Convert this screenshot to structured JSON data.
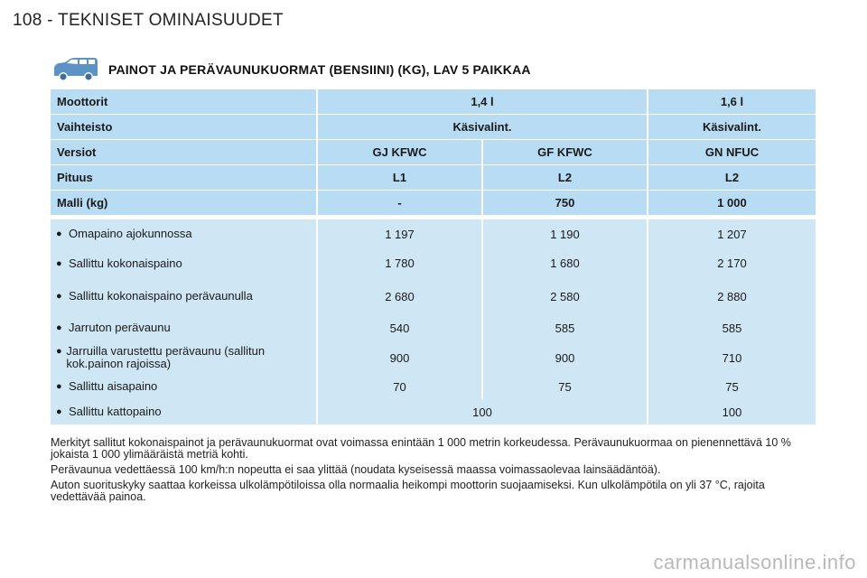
{
  "page": {
    "header": "108 - TEKNISET OMINAISUUDET"
  },
  "section": {
    "title": "PAINOT JA PERÄVAUNUKUORMAT (BENSIINI) (KG), LAV 5 PAIKKAA",
    "icon": "van-icon"
  },
  "table": {
    "header_rows": [
      {
        "label": "Moottorit",
        "cells": [
          "1,4 l",
          "1,6 l"
        ],
        "spans": [
          2,
          1
        ]
      },
      {
        "label": "Vaihteisto",
        "cells": [
          "Käsivalint.",
          "Käsivalint."
        ],
        "spans": [
          2,
          1
        ]
      },
      {
        "label": "Versiot",
        "cells": [
          "GJ KFWC",
          "GF KFWC",
          "GN NFUC"
        ],
        "spans": [
          1,
          1,
          1
        ]
      },
      {
        "label": "Pituus",
        "cells": [
          "L1",
          "L2",
          "L2"
        ],
        "spans": [
          1,
          1,
          1
        ]
      },
      {
        "label": "Malli (kg)",
        "cells": [
          "-",
          "750",
          "1 000"
        ],
        "spans": [
          1,
          1,
          1
        ]
      }
    ],
    "body_rows": [
      {
        "label": "Omapaino ajokunnossa",
        "cells": [
          "1 197",
          "1 190",
          "1 207"
        ]
      },
      {
        "label": "Sallittu kokonaispaino",
        "cells": [
          "1 780",
          "1 680",
          "2 170"
        ]
      },
      {
        "label": "Sallittu kokonaispaino perävaunulla",
        "cells": [
          "2 680",
          "2 580",
          "2 880"
        ]
      },
      {
        "label": "Jarruton perävaunu",
        "cells": [
          "540",
          "585",
          "585"
        ]
      },
      {
        "label": "Jarruilla varustettu perävaunu (sallitun kok.painon rajoissa)",
        "cells": [
          "900",
          "900",
          "710"
        ]
      },
      {
        "label": "Sallittu aisapaino",
        "cells": [
          "70",
          "75",
          "75"
        ]
      },
      {
        "label": "Sallittu kattopaino",
        "cells": [
          "100",
          "100"
        ]
      }
    ],
    "bullet": "●"
  },
  "notes": [
    "Merkityt sallitut kokonaispainot ja perävaunukuormat ovat voimassa enintään 1 000 metrin korkeudessa. Perävaunukuormaa on pienennettävä 10 % jokaista 1 000 ylimääräistä metriä kohti.",
    "Perävaunua vedettäessä 100 km/h:n nopeutta ei saa ylittää (noudata kyseisessä maassa voimassaolevaa lainsäädäntöä).",
    "Auton suorituskyky saattaa korkeissa ulkolämpötiloissa olla normaalia heikompi moottorin suojaamiseksi. Kun ulkolämpötila on yli 37 °C, rajoita vedettävää painoa."
  ],
  "watermark": "carmanualsonline.info"
}
